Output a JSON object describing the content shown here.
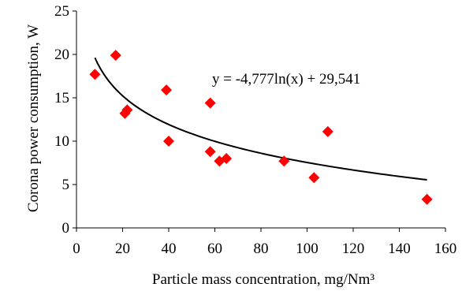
{
  "chart_data": {
    "type": "scatter",
    "title": "",
    "xlabel": "Particle mass concentration, mg/Nm³",
    "ylabel": "Corona power consumption, W",
    "xlim": [
      0,
      160
    ],
    "ylim": [
      0,
      25
    ],
    "xticks": [
      0,
      20,
      40,
      60,
      80,
      100,
      120,
      140,
      160
    ],
    "yticks": [
      0,
      5,
      10,
      15,
      20,
      25
    ],
    "grid": false,
    "legend": "none",
    "marker": "diamond",
    "marker_color": "#ff0000",
    "trend_color": "#000000",
    "series": [
      {
        "x": [
          8,
          17,
          21,
          22,
          39,
          40,
          58,
          58,
          62,
          65,
          90,
          103,
          109,
          152
        ],
        "y": [
          17.7,
          19.9,
          13.2,
          13.6,
          15.9,
          10.0,
          14.4,
          8.8,
          7.7,
          8.0,
          7.7,
          5.8,
          11.1,
          3.3
        ]
      }
    ],
    "trendline": {
      "type": "logarithmic",
      "a": -4.777,
      "b": 29.541,
      "x_range": [
        8,
        152
      ],
      "label": "y = -4,777ln(x) + 29,541"
    }
  }
}
